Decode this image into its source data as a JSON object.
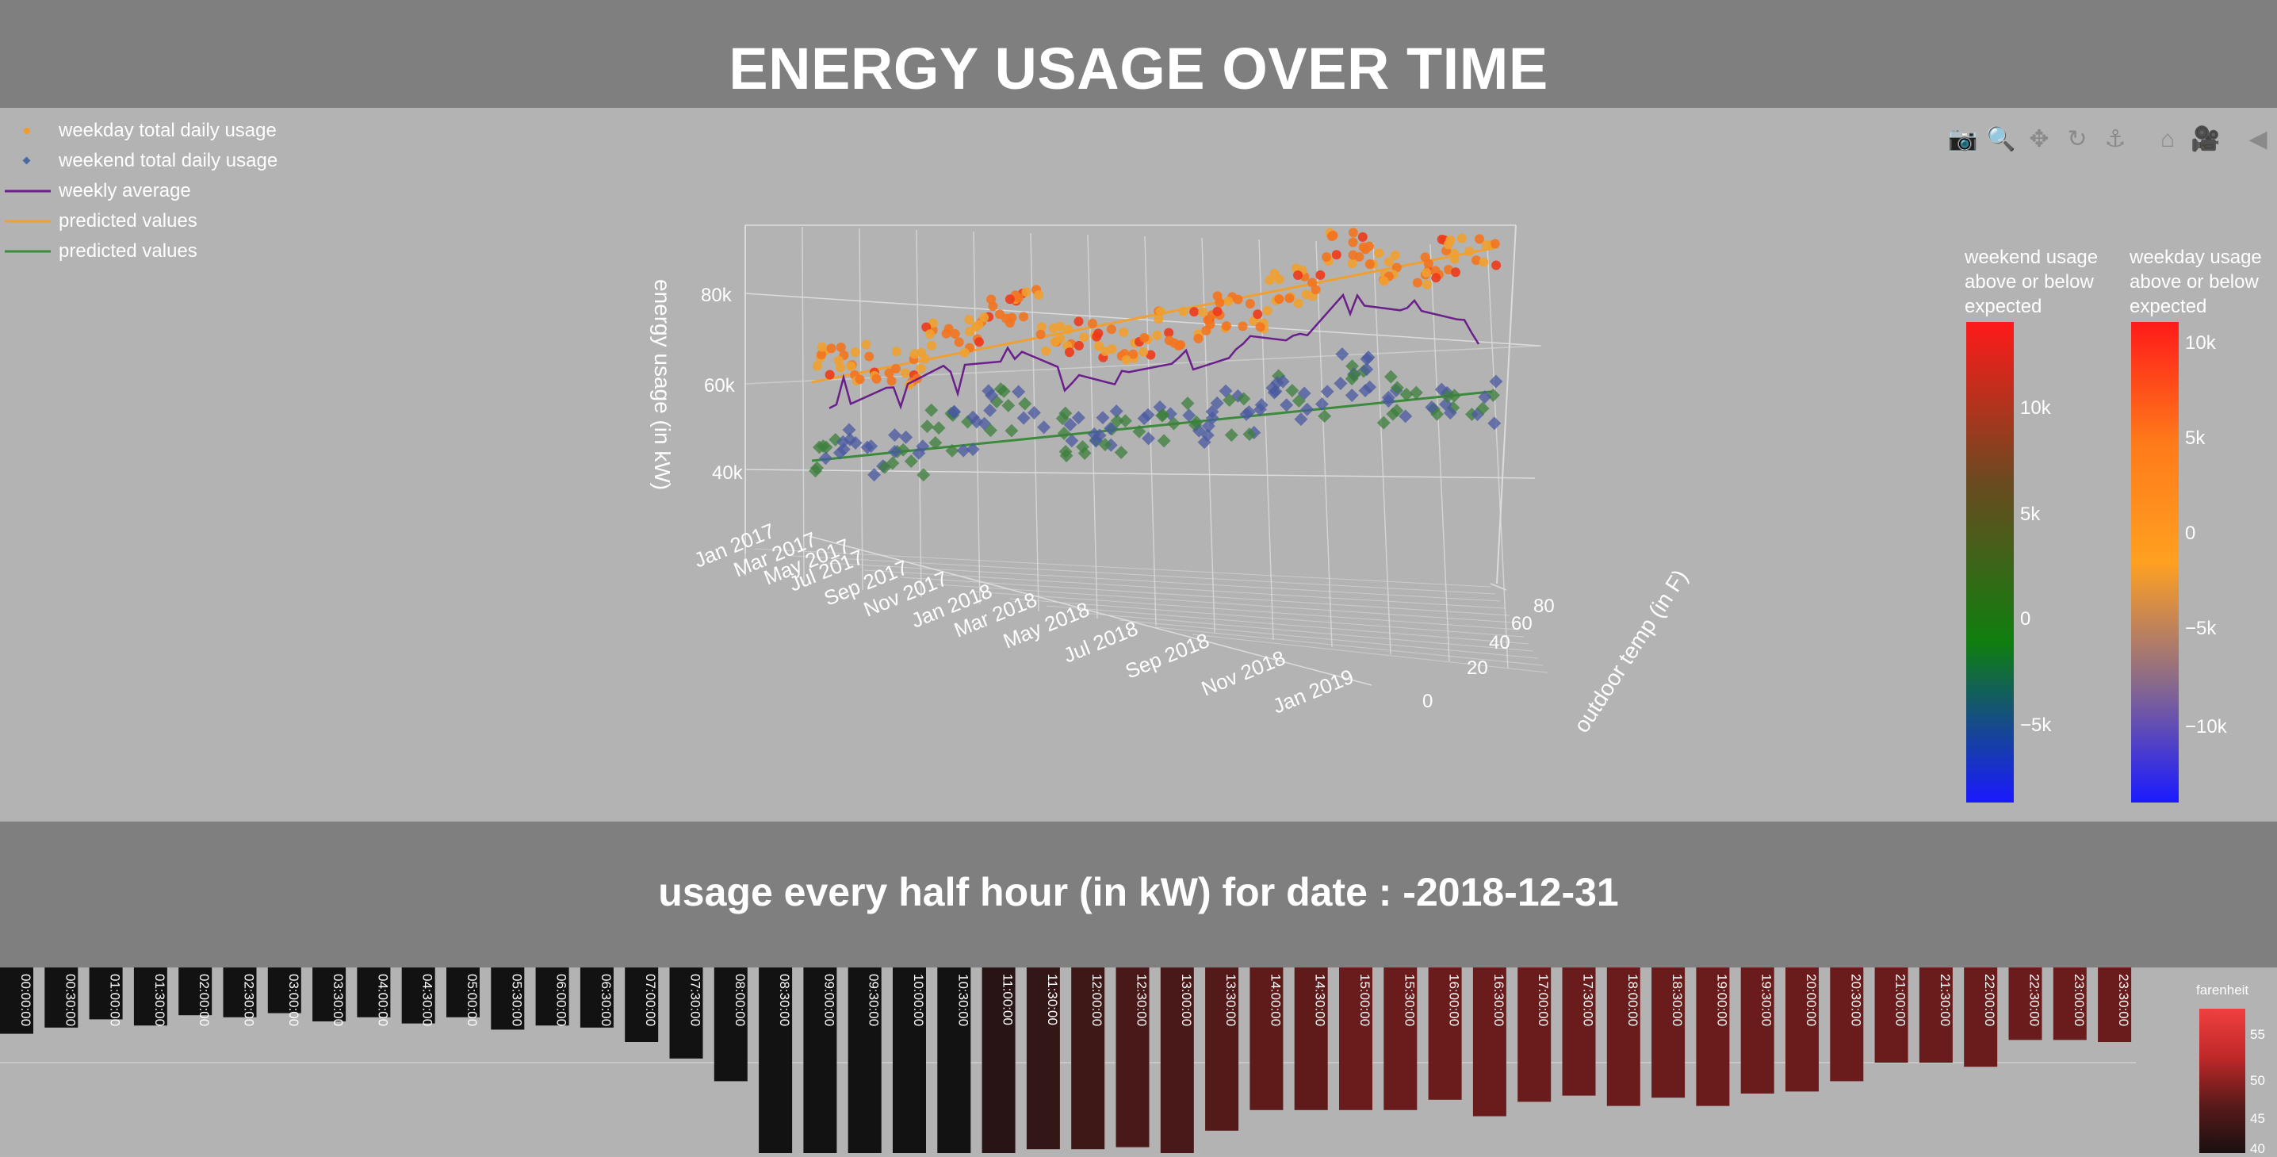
{
  "page": {
    "title": "ENERGY USAGE OVER TIME",
    "subtitle": "usage every half hour (in kW) for date : -2018-12-31"
  },
  "legend": {
    "items": [
      {
        "label": "weekday total daily usage",
        "symbol": "dot",
        "color": "#f39c2a"
      },
      {
        "label": "weekend total daily usage",
        "symbol": "diamond",
        "color": "#4a6aa0"
      },
      {
        "label": "weekly average",
        "symbol": "line",
        "color": "#6a1f8a"
      },
      {
        "label": "predicted values",
        "symbol": "line",
        "color": "#f0a030"
      },
      {
        "label": "predicted values",
        "symbol": "line",
        "color": "#3c8a3c"
      }
    ]
  },
  "modebar": {
    "icons": [
      "camera-icon",
      "zoom-icon",
      "pan-icon",
      "orbit-icon",
      "turntable-icon",
      "home-icon",
      "camera-view-icon",
      "hover-icon"
    ]
  },
  "colors": {
    "background": "#b4b4b4",
    "band": "#7f7f7f",
    "text": "#ffffff",
    "weekday_dot": "#f39c2a",
    "weekend_diamond": "#3c7f3c",
    "weekly_average": "#6a1f8a"
  },
  "chart_data": [
    {
      "type": "scatter",
      "title": "ENERGY USAGE OVER TIME",
      "axes": {
        "z_label": "energy usage (in kW)",
        "z_ticks": [
          "40k",
          "60k",
          "80k"
        ],
        "x_ticks": [
          "Jan 2017",
          "Mar 2017",
          "May 2017",
          "Jul 2017",
          "Sep 2017",
          "Nov 2017",
          "Jan 2018",
          "Mar 2018",
          "May 2018",
          "Jul 2018",
          "Sep 2018",
          "Nov 2018",
          "Jan 2019"
        ],
        "y_label": "outdoor temp (in F)",
        "y_ticks": [
          "0",
          "20",
          "40",
          "60",
          "80"
        ]
      },
      "series": [
        {
          "name": "weekday total daily usage",
          "marker": "circle",
          "x": [
            "2017-02",
            "2017-04",
            "2017-06",
            "2017-08",
            "2017-10",
            "2017-12",
            "2018-02",
            "2018-04",
            "2018-06",
            "2018-08",
            "2018-10",
            "2018-12"
          ],
          "y": [
            64000,
            62000,
            68000,
            74000,
            66000,
            64000,
            66000,
            69000,
            74000,
            82000,
            76000,
            78000
          ]
        },
        {
          "name": "weekend total daily usage",
          "marker": "diamond",
          "x": [
            "2017-02",
            "2017-04",
            "2017-06",
            "2017-08",
            "2017-10",
            "2017-12",
            "2018-02",
            "2018-04",
            "2018-06",
            "2018-08",
            "2018-10",
            "2018-12"
          ],
          "y": [
            44000,
            42000,
            46000,
            50000,
            44000,
            43000,
            45000,
            46000,
            48000,
            52000,
            46000,
            44000
          ]
        },
        {
          "name": "weekly average",
          "marker": "line",
          "x": [
            "2017-02",
            "2017-04",
            "2017-06",
            "2017-08",
            "2017-10",
            "2017-12",
            "2018-02",
            "2018-04",
            "2018-06",
            "2018-08",
            "2018-10",
            "2018-12"
          ],
          "y": [
            57000,
            55000,
            58000,
            62000,
            57000,
            56000,
            58000,
            60000,
            64000,
            70000,
            66000,
            60000
          ]
        },
        {
          "name": "predicted values",
          "marker": "line",
          "x": [
            "2017-01",
            "2018-12"
          ],
          "y": [
            60000,
            78000
          ]
        },
        {
          "name": "predicted values",
          "marker": "line",
          "x": [
            "2017-01",
            "2018-12"
          ],
          "y": [
            42000,
            47000
          ]
        }
      ],
      "colorbars": [
        {
          "title": [
            "weekend usage",
            "above or below",
            "expected"
          ],
          "ticks": [
            "10k",
            "5k",
            "0",
            "−5k"
          ],
          "colors": [
            "#ff1a1a",
            "#6b4a20",
            "#0f7f0f",
            "#1a1aff"
          ]
        },
        {
          "title": [
            "weekday usage",
            "above or below",
            "expected"
          ],
          "ticks": [
            "10k",
            "5k",
            "0",
            "−5k",
            "−10k"
          ],
          "colors": [
            "#ff1a1a",
            "#ff7a1a",
            "#ffa020",
            "#8a6a8a",
            "#1a1aff"
          ]
        }
      ]
    },
    {
      "type": "bar",
      "title": "usage every half hour (in kW) for date : -2018-12-31",
      "categories": [
        "00:00:00",
        "00:30:00",
        "01:00:00",
        "01:30:00",
        "02:00:00",
        "02:30:00",
        "03:00:00",
        "03:30:00",
        "04:00:00",
        "04:30:00",
        "05:00:00",
        "05:30:00",
        "06:00:00",
        "06:30:00",
        "07:00:00",
        "07:30:00",
        "08:00:00",
        "08:30:00",
        "09:00:00",
        "09:30:00",
        "10:00:00",
        "10:30:00",
        "11:00:00",
        "11:30:00",
        "12:00:00",
        "12:30:00",
        "13:00:00",
        "13:30:00",
        "14:00:00",
        "14:30:00",
        "15:00:00",
        "15:30:00",
        "16:00:00",
        "16:30:00",
        "17:00:00",
        "17:30:00",
        "18:00:00",
        "18:30:00",
        "19:00:00",
        "19:30:00",
        "20:00:00",
        "20:30:00",
        "21:00:00",
        "21:30:00",
        "22:00:00",
        "22:30:00",
        "23:00:00",
        "23:30:00"
      ],
      "values": [
        1160,
        1130,
        1090,
        1120,
        1070,
        1080,
        1060,
        1100,
        1080,
        1110,
        1080,
        1140,
        1120,
        1130,
        1200,
        1280,
        1390,
        1750,
        1750,
        1790,
        1790,
        1850,
        1820,
        1720,
        1720,
        1710,
        1790,
        1630,
        1530,
        1530,
        1530,
        1530,
        1480,
        1560,
        1490,
        1460,
        1510,
        1470,
        1510,
        1450,
        1440,
        1390,
        1300,
        1300,
        1320,
        1190,
        1190,
        1200
      ],
      "temperature_f": [
        38,
        38,
        38,
        38,
        38,
        38,
        38,
        38,
        38,
        38,
        38,
        38,
        38,
        38,
        38,
        38,
        38,
        38,
        38,
        38,
        38,
        38,
        40,
        41,
        42,
        43,
        43,
        44,
        45,
        45,
        46,
        46,
        46,
        46,
        46,
        46,
        46,
        46,
        46,
        46,
        46,
        46,
        46,
        46,
        46,
        46,
        46,
        46
      ],
      "colorbar": {
        "title": "farenheit",
        "ticks": [
          "55",
          "50",
          "45",
          "40"
        ]
      }
    }
  ]
}
